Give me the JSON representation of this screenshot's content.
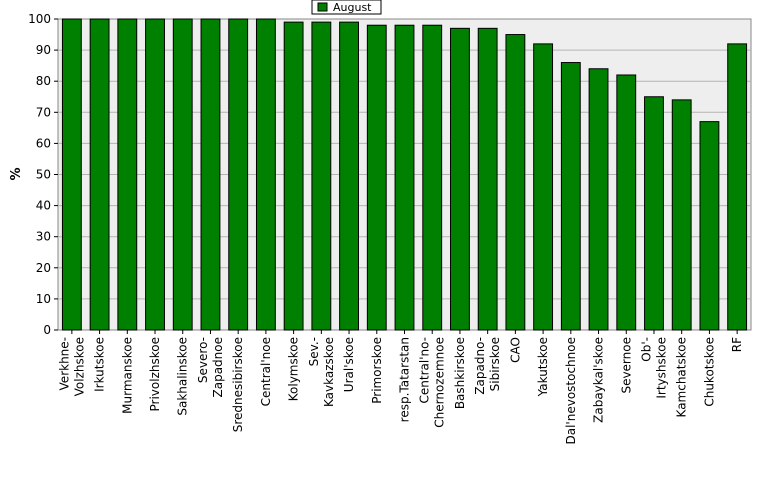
{
  "chart_data": {
    "type": "bar",
    "title": "",
    "xlabel": "",
    "ylabel": "%",
    "ylim": [
      0,
      100
    ],
    "yticks": [
      0,
      10,
      20,
      30,
      40,
      50,
      60,
      70,
      80,
      90,
      100
    ],
    "grid": true,
    "legend_position": "top-center",
    "categories": [
      [
        "Verkhne-",
        "Volzhskoe"
      ],
      [
        "Irkutskoe"
      ],
      [
        "Murmanskoe"
      ],
      [
        "Privolzhskoe"
      ],
      [
        "Sakhalinskoe"
      ],
      [
        "Severo-",
        "Zapadnoe"
      ],
      [
        "Srednesibirskoe"
      ],
      [
        "Central'noe"
      ],
      [
        "Kolymskoe"
      ],
      [
        "Sev.-",
        "Kavkazskoe"
      ],
      [
        "Ural'skoe"
      ],
      [
        "Primorskoe"
      ],
      [
        "resp.Tatarstan"
      ],
      [
        "Central'no-",
        "Chernozemnoe"
      ],
      [
        "Bashkirskoe"
      ],
      [
        "Zapadno-",
        "Sibirskoe"
      ],
      [
        "CAO"
      ],
      [
        "Yakutskoe"
      ],
      [
        "Dal'nevostochnoe"
      ],
      [
        "Zabaykal'skoe"
      ],
      [
        "Severnoe"
      ],
      [
        "Ob'-",
        "Irtyshskoe"
      ],
      [
        "Kamchatskoe"
      ],
      [
        "Chukotskoe"
      ],
      [
        "RF"
      ]
    ],
    "series": [
      {
        "name": "August",
        "color": "#008000",
        "values": [
          100,
          100,
          100,
          100,
          100,
          100,
          100,
          100,
          99,
          99,
          99,
          98,
          98,
          98,
          97,
          97,
          95,
          92,
          86,
          84,
          82,
          75,
          74,
          67,
          92
        ]
      }
    ]
  }
}
